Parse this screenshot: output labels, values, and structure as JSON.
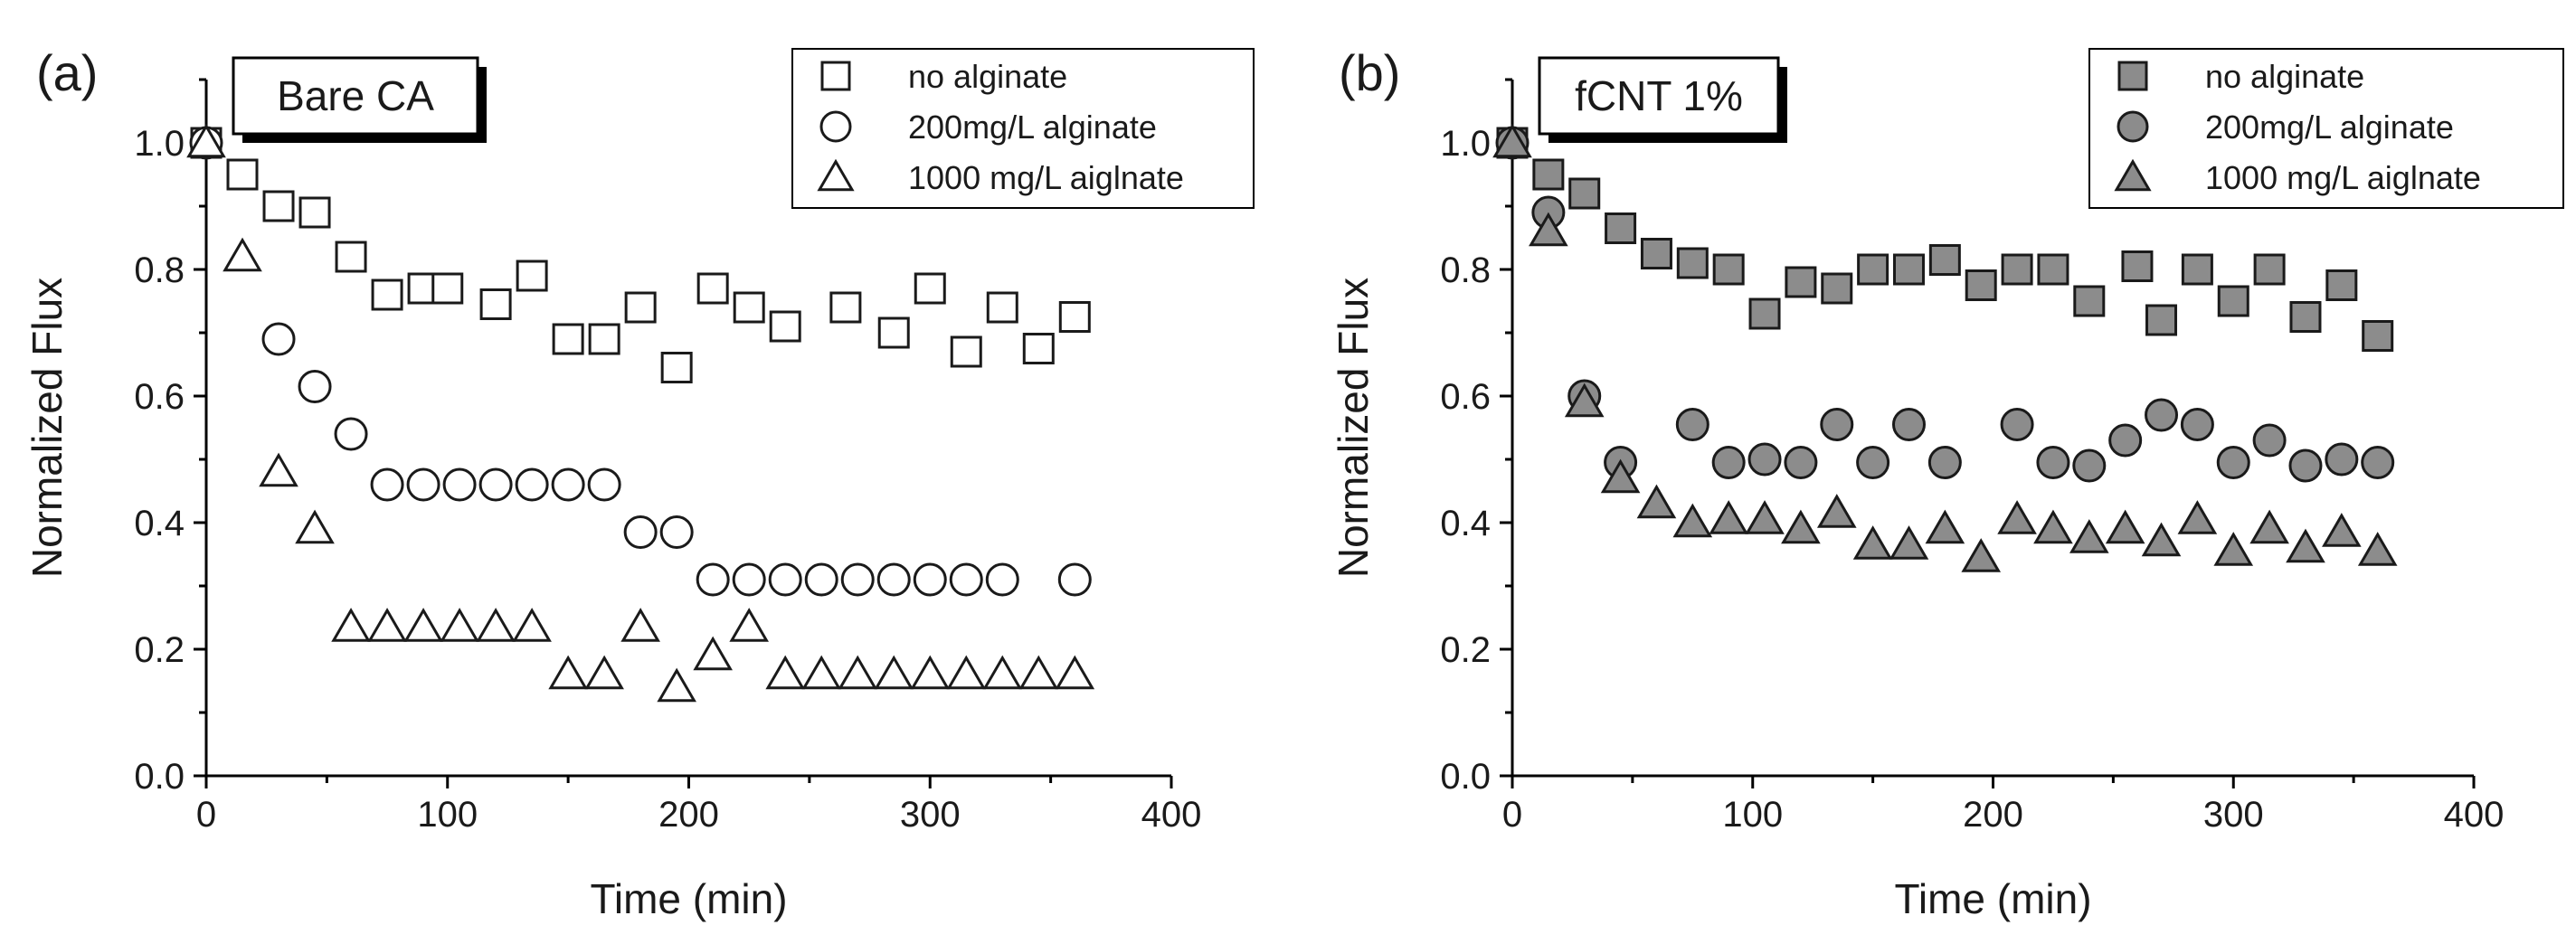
{
  "figure": {
    "background": "#ffffff"
  },
  "chart_data": [
    {
      "type": "scatter",
      "panel_label": "(a)",
      "title": "Bare CA",
      "xlabel": "Time (min)",
      "ylabel": "Normalized Flux",
      "xlim": [
        0,
        400
      ],
      "ylim": [
        0,
        1.1
      ],
      "xticks": [
        0,
        100,
        200,
        300,
        400
      ],
      "yticks": [
        0.0,
        0.2,
        0.4,
        0.6,
        0.8,
        1.0
      ],
      "xtick_labels": [
        "0",
        "100",
        "200",
        "300",
        "400"
      ],
      "ytick_labels": [
        "0.0",
        "0.2",
        "0.4",
        "0.6",
        "0.8",
        "1.0"
      ],
      "legend_position": "top-right",
      "series": [
        {
          "name": "no alginate",
          "marker": "square",
          "fill": "#ffffff",
          "x": [
            0,
            15,
            30,
            45,
            60,
            75,
            90,
            100,
            120,
            135,
            150,
            165,
            180,
            195,
            210,
            225,
            240,
            265,
            285,
            300,
            315,
            330,
            345,
            360
          ],
          "y": [
            1.0,
            0.95,
            0.9,
            0.89,
            0.82,
            0.76,
            0.77,
            0.77,
            0.745,
            0.79,
            0.69,
            0.69,
            0.74,
            0.645,
            0.77,
            0.74,
            0.71,
            0.74,
            0.7,
            0.77,
            0.67,
            0.74,
            0.675,
            0.725
          ]
        },
        {
          "name": "200mg/L alginate",
          "marker": "circle",
          "fill": "#ffffff",
          "x": [
            0,
            30,
            45,
            60,
            75,
            90,
            105,
            120,
            135,
            150,
            165,
            180,
            195,
            210,
            225,
            240,
            255,
            270,
            285,
            300,
            315,
            330,
            360
          ],
          "y": [
            1.0,
            0.69,
            0.615,
            0.54,
            0.46,
            0.46,
            0.46,
            0.46,
            0.46,
            0.46,
            0.46,
            0.385,
            0.385,
            0.31,
            0.31,
            0.31,
            0.31,
            0.31,
            0.31,
            0.31,
            0.31,
            0.31,
            0.31
          ]
        },
        {
          "name": "1000 mg/L aiglnate",
          "marker": "triangle",
          "fill": "#ffffff",
          "x": [
            0,
            15,
            30,
            45,
            60,
            75,
            90,
            105,
            120,
            135,
            150,
            165,
            180,
            195,
            210,
            225,
            240,
            255,
            270,
            285,
            300,
            315,
            330,
            345,
            360
          ],
          "y": [
            1.0,
            0.82,
            0.48,
            0.39,
            0.235,
            0.235,
            0.235,
            0.235,
            0.235,
            0.235,
            0.16,
            0.16,
            0.235,
            0.14,
            0.19,
            0.235,
            0.16,
            0.16,
            0.16,
            0.16,
            0.16,
            0.16,
            0.16,
            0.16,
            0.16
          ]
        }
      ]
    },
    {
      "type": "scatter",
      "panel_label": "(b)",
      "title": "fCNT 1%",
      "xlabel": "Time (min)",
      "ylabel": "Normalized Flux",
      "xlim": [
        0,
        400
      ],
      "ylim": [
        0,
        1.1
      ],
      "xticks": [
        0,
        100,
        200,
        300,
        400
      ],
      "yticks": [
        0.0,
        0.2,
        0.4,
        0.6,
        0.8,
        1.0
      ],
      "xtick_labels": [
        "0",
        "100",
        "200",
        "300",
        "400"
      ],
      "ytick_labels": [
        "0.0",
        "0.2",
        "0.4",
        "0.6",
        "0.8",
        "1.0"
      ],
      "legend_position": "top-right",
      "series": [
        {
          "name": "no alginate",
          "marker": "square",
          "fill": "#8c8c8c",
          "x": [
            0,
            15,
            30,
            45,
            60,
            75,
            90,
            105,
            120,
            135,
            150,
            165,
            180,
            195,
            210,
            225,
            240,
            260,
            270,
            285,
            300,
            315,
            330,
            345,
            360
          ],
          "y": [
            1.0,
            0.95,
            0.92,
            0.865,
            0.825,
            0.81,
            0.8,
            0.73,
            0.78,
            0.77,
            0.8,
            0.8,
            0.815,
            0.775,
            0.8,
            0.8,
            0.75,
            0.805,
            0.72,
            0.8,
            0.75,
            0.8,
            0.725,
            0.775,
            0.695
          ]
        },
        {
          "name": "200mg/L alginate",
          "marker": "circle",
          "fill": "#8c8c8c",
          "x": [
            0,
            15,
            30,
            45,
            75,
            90,
            105,
            120,
            135,
            150,
            165,
            180,
            210,
            225,
            240,
            255,
            270,
            285,
            300,
            315,
            330,
            345,
            360
          ],
          "y": [
            1.0,
            0.89,
            0.6,
            0.495,
            0.555,
            0.495,
            0.5,
            0.495,
            0.555,
            0.495,
            0.555,
            0.495,
            0.555,
            0.495,
            0.49,
            0.53,
            0.57,
            0.555,
            0.495,
            0.53,
            0.49,
            0.5,
            0.495
          ]
        },
        {
          "name": "1000 mg/L aiglnate",
          "marker": "triangle",
          "fill": "#8c8c8c",
          "x": [
            0,
            15,
            30,
            45,
            60,
            75,
            90,
            105,
            120,
            135,
            150,
            165,
            180,
            195,
            210,
            225,
            240,
            255,
            270,
            285,
            300,
            315,
            330,
            345,
            360
          ],
          "y": [
            1.0,
            0.86,
            0.59,
            0.47,
            0.43,
            0.4,
            0.405,
            0.405,
            0.39,
            0.415,
            0.365,
            0.365,
            0.39,
            0.345,
            0.405,
            0.39,
            0.375,
            0.39,
            0.37,
            0.405,
            0.355,
            0.39,
            0.36,
            0.385,
            0.355
          ]
        }
      ]
    }
  ]
}
